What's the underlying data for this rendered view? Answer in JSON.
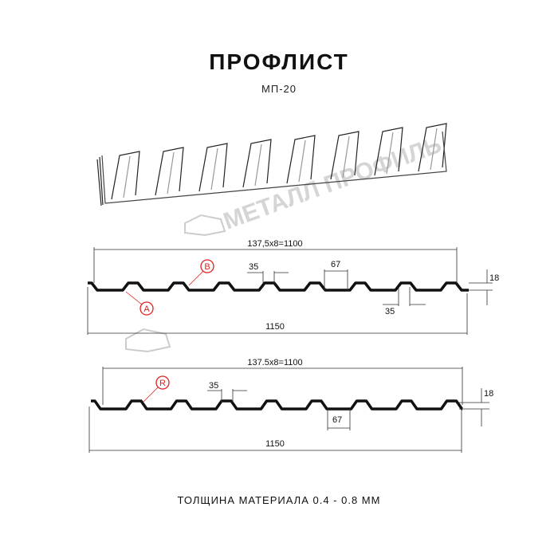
{
  "title": "ПРОФЛИСТ",
  "subtitle": "МП-20",
  "footer": "ТОЛЩИНА МАТЕРИАЛА 0.4 - 0.8 ММ",
  "watermark": "МЕТАЛЛ ПРОФИЛЬ",
  "profile_1": {
    "overall_pitch": "137,5x8=1100",
    "total_width": "1150",
    "rib_top": "35",
    "rib_bottom": "35",
    "rib_gap": "67",
    "height": "18",
    "marker_a": "A",
    "marker_b": "B"
  },
  "profile_2": {
    "overall_pitch": "137.5x8=1100",
    "total_width": "1150",
    "rib_top": "35",
    "rib_gap": "67",
    "height": "18",
    "marker_r": "R"
  },
  "colors": {
    "line": "#111111",
    "marker": "#e02020",
    "watermark": "#c8c8c8"
  }
}
